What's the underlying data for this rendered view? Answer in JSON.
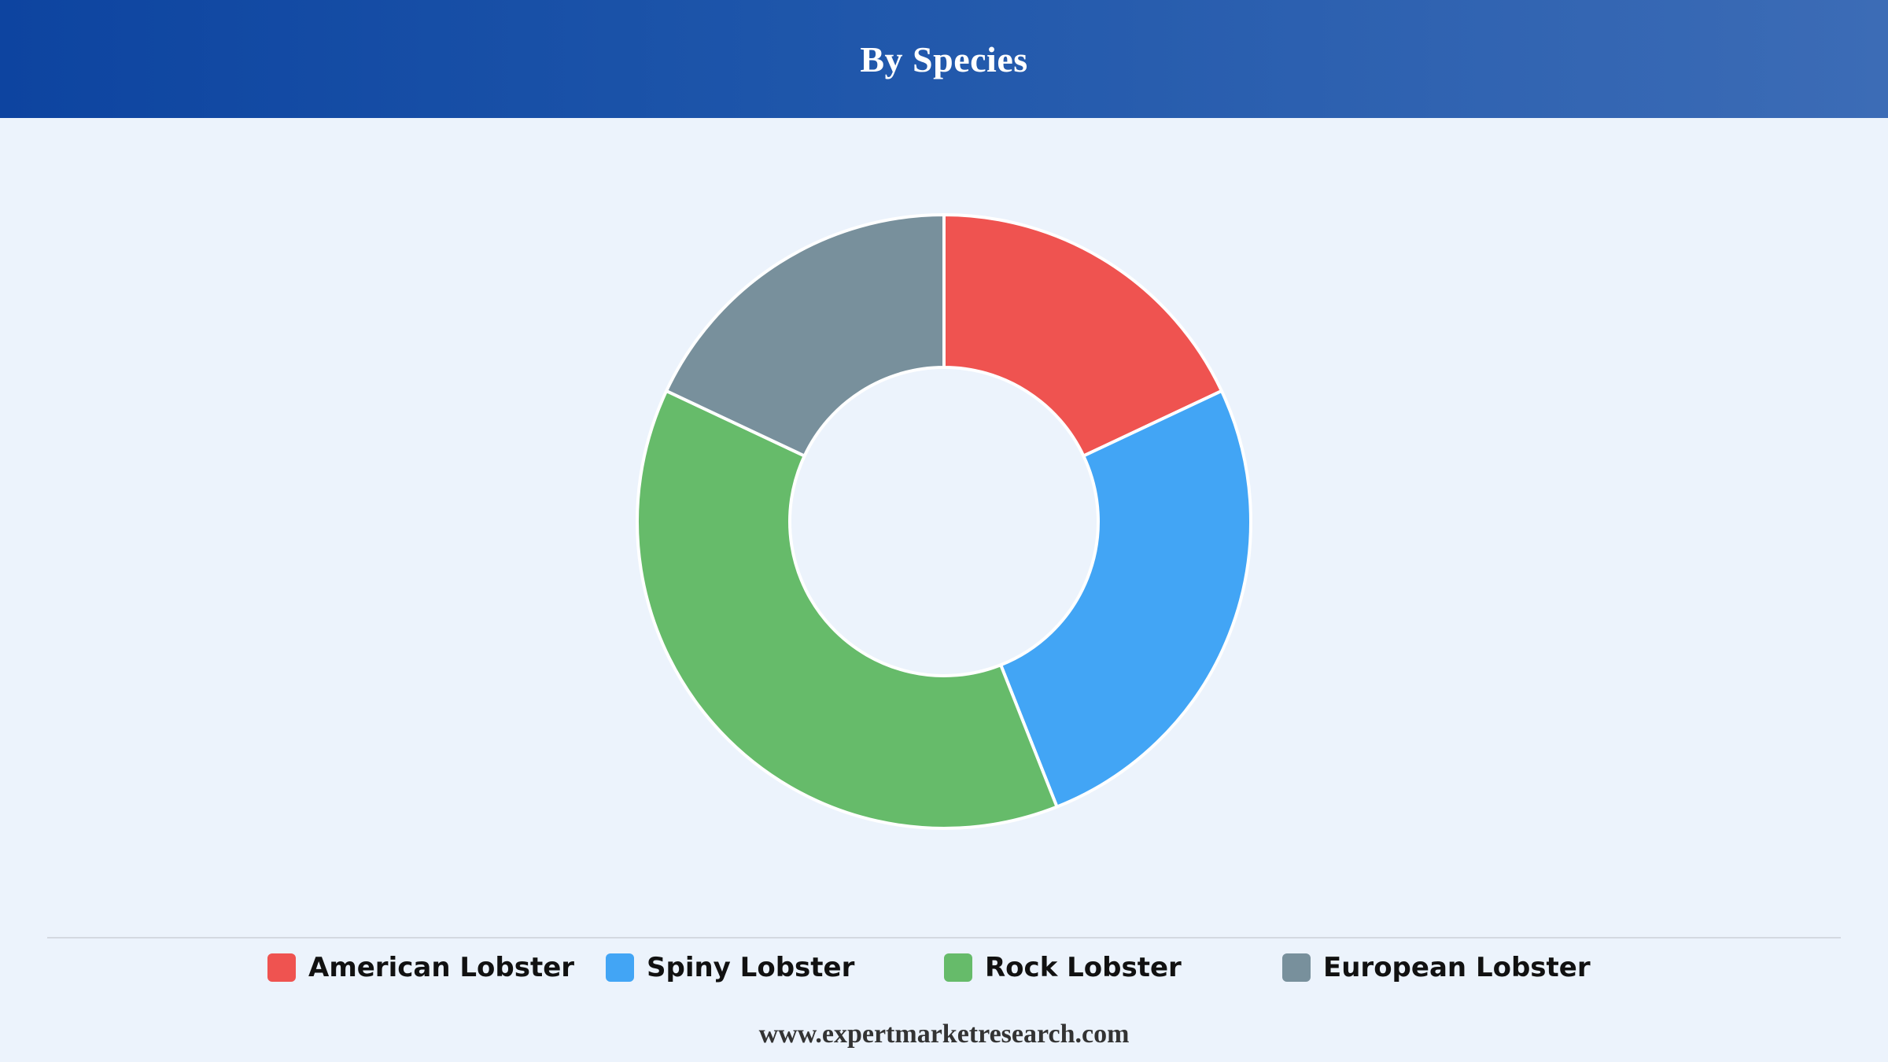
{
  "header": {
    "title": "By Species"
  },
  "chart_data": {
    "type": "pie",
    "variant": "donut",
    "title": "By Species",
    "categories": [
      "American Lobster",
      "Spiny Lobster",
      "Rock Lobster",
      "European Lobster"
    ],
    "values": [
      18,
      26,
      38,
      18
    ],
    "colors": [
      "#ef5350",
      "#42a5f5",
      "#66bb6a",
      "#78909c"
    ],
    "legend_position": "bottom"
  },
  "legend": {
    "items": [
      {
        "label": "American Lobster",
        "color": "#ef5350"
      },
      {
        "label": "Spiny Lobster",
        "color": "#42a5f5"
      },
      {
        "label": "Rock Lobster",
        "color": "#66bb6a"
      },
      {
        "label": "European Lobster",
        "color": "#78909c"
      }
    ]
  },
  "footer": {
    "text": "www.expertmarketresearch.com"
  }
}
